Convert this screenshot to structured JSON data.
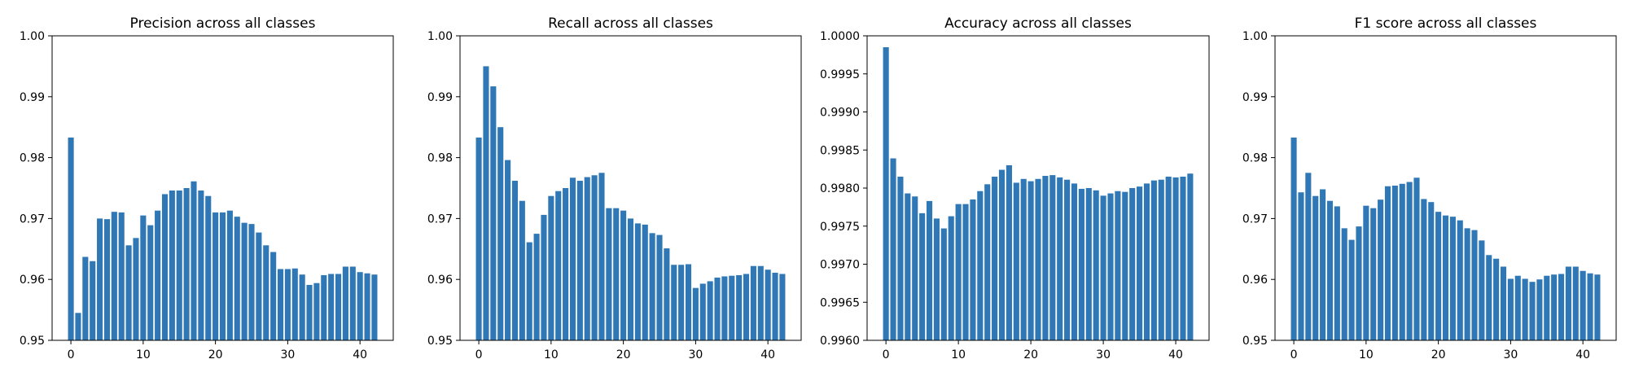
{
  "chart_data": [
    {
      "type": "bar",
      "title": "Precision across all classes",
      "xlabel": "",
      "ylabel": "",
      "x": [
        0,
        1,
        2,
        3,
        4,
        5,
        6,
        7,
        8,
        9,
        10,
        11,
        12,
        13,
        14,
        15,
        16,
        17,
        18,
        19,
        20,
        21,
        22,
        23,
        24,
        25,
        26,
        27,
        28,
        29,
        30,
        31,
        32,
        33,
        34,
        35,
        36,
        37,
        38,
        39,
        40,
        41,
        42
      ],
      "values": [
        0.9833,
        0.9545,
        0.9637,
        0.963,
        0.97,
        0.9699,
        0.9711,
        0.971,
        0.9656,
        0.9668,
        0.9705,
        0.9689,
        0.9713,
        0.974,
        0.9746,
        0.9746,
        0.975,
        0.9761,
        0.9746,
        0.9737,
        0.971,
        0.971,
        0.9713,
        0.9703,
        0.9693,
        0.9691,
        0.9677,
        0.9656,
        0.9645,
        0.9617,
        0.9617,
        0.9618,
        0.9608,
        0.9591,
        0.9594,
        0.9607,
        0.9609,
        0.9609,
        0.9621,
        0.9621,
        0.9612,
        0.961,
        0.9608
      ],
      "ylim": [
        0.95,
        1.0
      ],
      "yticks": [
        "0.95",
        "0.96",
        "0.97",
        "0.98",
        "0.99",
        "1.00"
      ],
      "xticks": [
        "0",
        "10",
        "20",
        "30",
        "40"
      ],
      "grid": false,
      "color": "#2f78b5"
    },
    {
      "type": "bar",
      "title": "Recall across all classes",
      "xlabel": "",
      "ylabel": "",
      "x": [
        0,
        1,
        2,
        3,
        4,
        5,
        6,
        7,
        8,
        9,
        10,
        11,
        12,
        13,
        14,
        15,
        16,
        17,
        18,
        19,
        20,
        21,
        22,
        23,
        24,
        25,
        26,
        27,
        28,
        29,
        30,
        31,
        32,
        33,
        34,
        35,
        36,
        37,
        38,
        39,
        40,
        41,
        42
      ],
      "values": [
        0.9833,
        0.995,
        0.9917,
        0.985,
        0.9796,
        0.9762,
        0.9729,
        0.9661,
        0.9675,
        0.9706,
        0.9737,
        0.9745,
        0.975,
        0.9767,
        0.9762,
        0.9768,
        0.9771,
        0.9775,
        0.9717,
        0.9717,
        0.9713,
        0.97,
        0.9692,
        0.969,
        0.9676,
        0.9673,
        0.9651,
        0.9624,
        0.9624,
        0.9625,
        0.9586,
        0.9593,
        0.9597,
        0.9603,
        0.9605,
        0.9606,
        0.9607,
        0.9609,
        0.9622,
        0.9622,
        0.9616,
        0.9611,
        0.9609
      ],
      "ylim": [
        0.95,
        1.0
      ],
      "yticks": [
        "0.95",
        "0.96",
        "0.97",
        "0.98",
        "0.99",
        "1.00"
      ],
      "xticks": [
        "0",
        "10",
        "20",
        "30",
        "40"
      ],
      "grid": false,
      "color": "#2f78b5"
    },
    {
      "type": "bar",
      "title": "Accuracy across all classes",
      "xlabel": "",
      "ylabel": "",
      "x": [
        0,
        1,
        2,
        3,
        4,
        5,
        6,
        7,
        8,
        9,
        10,
        11,
        12,
        13,
        14,
        15,
        16,
        17,
        18,
        19,
        20,
        21,
        22,
        23,
        24,
        25,
        26,
        27,
        28,
        29,
        30,
        31,
        32,
        33,
        34,
        35,
        36,
        37,
        38,
        39,
        40,
        41,
        42
      ],
      "values": [
        0.99985,
        0.99839,
        0.99815,
        0.99793,
        0.99789,
        0.99767,
        0.99783,
        0.9976,
        0.99747,
        0.99763,
        0.99779,
        0.99779,
        0.99785,
        0.99796,
        0.99805,
        0.99815,
        0.99824,
        0.9983,
        0.99807,
        0.99812,
        0.99809,
        0.99812,
        0.99816,
        0.99817,
        0.99814,
        0.99811,
        0.99806,
        0.99799,
        0.998,
        0.99797,
        0.9979,
        0.99793,
        0.99796,
        0.99795,
        0.998,
        0.99802,
        0.99806,
        0.9981,
        0.99811,
        0.99815,
        0.99814,
        0.99815,
        0.99819
      ],
      "ylim": [
        0.996,
        1.0
      ],
      "yticks": [
        "0.9960",
        "0.9965",
        "0.9970",
        "0.9975",
        "0.9980",
        "0.9985",
        "0.9990",
        "0.9995",
        "1.0000"
      ],
      "xticks": [
        "0",
        "10",
        "20",
        "30",
        "40"
      ],
      "grid": false,
      "color": "#2f78b5"
    },
    {
      "type": "bar",
      "title": "F1 score across all classes",
      "xlabel": "",
      "ylabel": "",
      "x": [
        0,
        1,
        2,
        3,
        4,
        5,
        6,
        7,
        8,
        9,
        10,
        11,
        12,
        13,
        14,
        15,
        16,
        17,
        18,
        19,
        20,
        21,
        22,
        23,
        24,
        25,
        26,
        27,
        28,
        29,
        30,
        31,
        32,
        33,
        34,
        35,
        36,
        37,
        38,
        39,
        40,
        41,
        42
      ],
      "values": [
        0.9833,
        0.9743,
        0.9775,
        0.9737,
        0.9748,
        0.9729,
        0.972,
        0.9684,
        0.9665,
        0.9687,
        0.9721,
        0.9717,
        0.9731,
        0.9753,
        0.9754,
        0.9757,
        0.976,
        0.9767,
        0.9732,
        0.9727,
        0.9711,
        0.9705,
        0.9703,
        0.9697,
        0.9684,
        0.9681,
        0.9664,
        0.964,
        0.9634,
        0.9621,
        0.9601,
        0.9606,
        0.9601,
        0.9596,
        0.96,
        0.9606,
        0.9608,
        0.9609,
        0.9621,
        0.9621,
        0.9614,
        0.961,
        0.9608
      ],
      "ylim": [
        0.95,
        1.0
      ],
      "yticks": [
        "0.95",
        "0.96",
        "0.97",
        "0.98",
        "0.99",
        "1.00"
      ],
      "xticks": [
        "0",
        "10",
        "20",
        "30",
        "40"
      ],
      "grid": false,
      "color": "#2f78b5"
    }
  ]
}
